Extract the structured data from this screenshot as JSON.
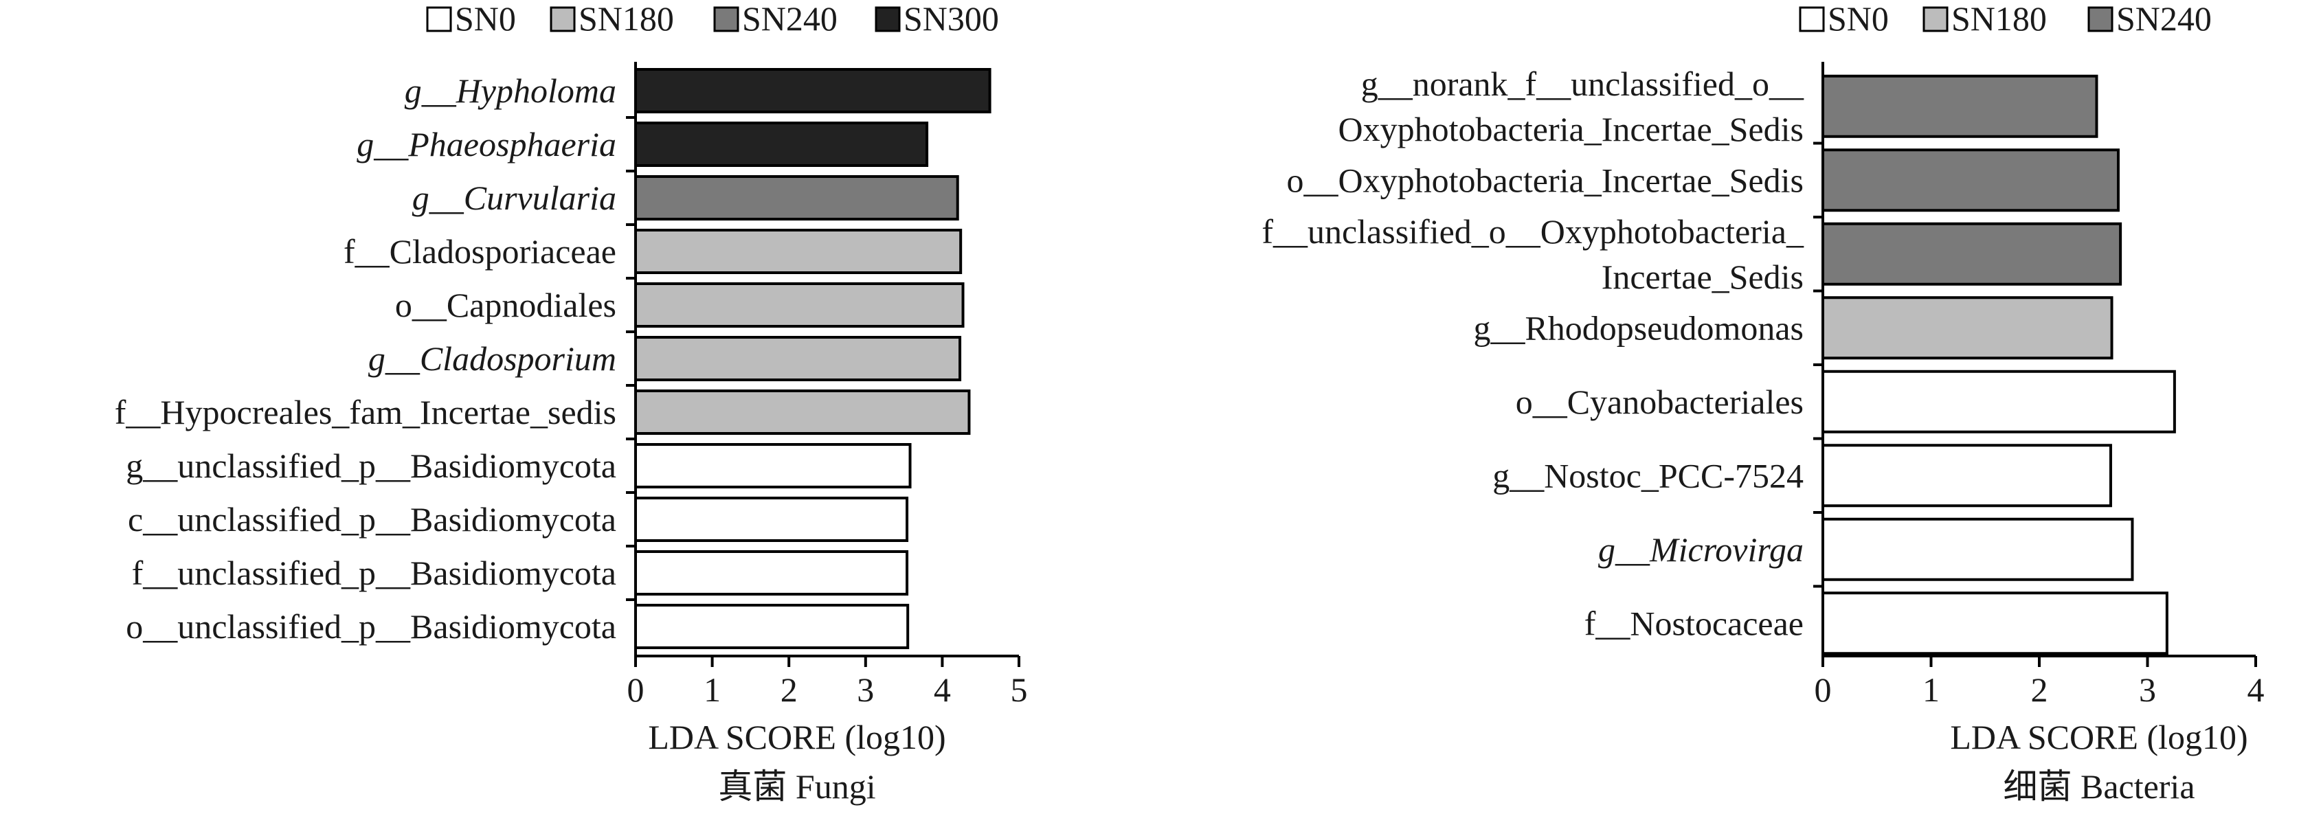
{
  "chart_data": [
    {
      "type": "bar",
      "orientation": "horizontal",
      "title": "真菌 Fungi",
      "xlabel": "LDA SCORE (log10)",
      "ylabel": "",
      "xlim": [
        0,
        5
      ],
      "x_ticks": [
        "0",
        "1",
        "2",
        "3",
        "4",
        "5"
      ],
      "grid": false,
      "legend_position": "top",
      "legend": [
        {
          "name": "SN0",
          "color": "#ffffff"
        },
        {
          "name": "SN180",
          "color": "#bcbcbc"
        },
        {
          "name": "SN240",
          "color": "#7a7a7a"
        },
        {
          "name": "SN300",
          "color": "#222222"
        }
      ],
      "categories": [
        {
          "lines": [
            {
              "prefix": "g__",
              "name": "Hypholoma",
              "italic": true
            }
          ]
        },
        {
          "lines": [
            {
              "prefix": "g__",
              "name": "Phaeosphaeria",
              "italic": true
            }
          ]
        },
        {
          "lines": [
            {
              "prefix": "g__",
              "name": "Curvularia",
              "italic": true
            }
          ]
        },
        {
          "lines": [
            {
              "prefix": "f__",
              "name": "Cladosporiaceae",
              "italic": false
            }
          ]
        },
        {
          "lines": [
            {
              "prefix": "o__",
              "name": "Capnodiales",
              "italic": false
            }
          ]
        },
        {
          "lines": [
            {
              "prefix": "g__",
              "name": "Cladosporium",
              "italic": true
            }
          ]
        },
        {
          "lines": [
            {
              "prefix": "f__",
              "name": "Hypocreales_fam_Incertae_sedis",
              "italic": false
            }
          ]
        },
        {
          "lines": [
            {
              "prefix": "g__",
              "name": "unclassified_p__Basidiomycota",
              "italic": false
            }
          ]
        },
        {
          "lines": [
            {
              "prefix": "c__",
              "name": "unclassified_p__Basidiomycota",
              "italic": false
            }
          ]
        },
        {
          "lines": [
            {
              "prefix": "f__",
              "name": "unclassified_p__Basidiomycota",
              "italic": false
            }
          ]
        },
        {
          "lines": [
            {
              "prefix": "o__",
              "name": "unclassified_p__Basidiomycota",
              "italic": false
            }
          ]
        }
      ],
      "values": [
        4.62,
        3.8,
        4.2,
        4.24,
        4.27,
        4.23,
        4.35,
        3.58,
        3.54,
        3.54,
        3.55
      ],
      "groups": [
        "SN300",
        "SN300",
        "SN240",
        "SN180",
        "SN180",
        "SN180",
        "SN180",
        "SN0",
        "SN0",
        "SN0",
        "SN0"
      ]
    },
    {
      "type": "bar",
      "orientation": "horizontal",
      "title": "细菌 Bacteria",
      "xlabel": "LDA SCORE (log10)",
      "ylabel": "",
      "xlim": [
        0,
        4
      ],
      "x_ticks": [
        "0",
        "1",
        "2",
        "3",
        "4"
      ],
      "grid": false,
      "legend_position": "top",
      "legend": [
        {
          "name": "SN0",
          "color": "#ffffff"
        },
        {
          "name": "SN180",
          "color": "#bcbcbc"
        },
        {
          "name": "SN240",
          "color": "#7a7a7a"
        }
      ],
      "categories": [
        {
          "lines": [
            {
              "prefix": "g__",
              "name": "norank_f__unclassified_o__",
              "italic": false
            },
            {
              "prefix": "",
              "name": "Oxyphotobacteria_Incertae_Sedis",
              "italic": false
            }
          ]
        },
        {
          "lines": [
            {
              "prefix": "o__",
              "name": "Oxyphotobacteria_Incertae_Sedis",
              "italic": false
            }
          ]
        },
        {
          "lines": [
            {
              "prefix": "f__",
              "name": "unclassified_o__Oxyphotobacteria_",
              "italic": false
            },
            {
              "prefix": "",
              "name": "Incertae_Sedis",
              "italic": false
            }
          ]
        },
        {
          "lines": [
            {
              "prefix": "g__",
              "name": "Rhodopseudomonas",
              "italic": false
            }
          ]
        },
        {
          "lines": [
            {
              "prefix": "o__",
              "name": "Cyanobacteriales",
              "italic": false
            }
          ]
        },
        {
          "lines": [
            {
              "prefix": "g__",
              "name": "Nostoc_PCC-7524",
              "italic": false
            }
          ]
        },
        {
          "lines": [
            {
              "prefix": "g__",
              "name": "Microvirga",
              "italic": true
            }
          ]
        },
        {
          "lines": [
            {
              "prefix": "f__",
              "name": "Nostocaceae",
              "italic": false
            }
          ]
        }
      ],
      "values": [
        2.53,
        2.73,
        2.75,
        2.67,
        3.25,
        2.66,
        2.86,
        3.18
      ],
      "groups": [
        "SN240",
        "SN240",
        "SN240",
        "SN180",
        "SN0",
        "SN0",
        "SN0",
        "SN0"
      ]
    }
  ]
}
